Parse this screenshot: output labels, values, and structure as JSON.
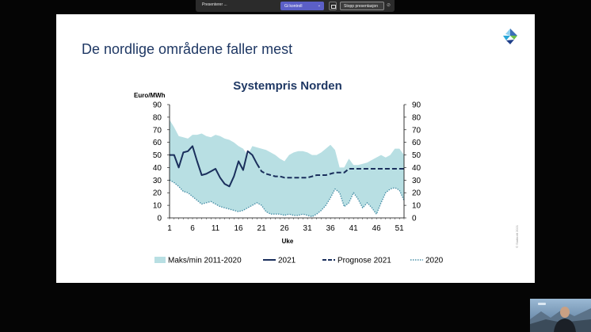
{
  "toolbar": {
    "presenting_label": "Presenterer ...",
    "take_control_label": "Gi kontroll",
    "stop_presenting_label": "Stopp presentasjon"
  },
  "slide": {
    "title": "De nordlige områdene faller mest",
    "copyright": "© Statkraft 2021"
  },
  "chart_data": {
    "type": "area",
    "title": "Systempris Norden",
    "ylabel": "Euro/MWh",
    "xlabel": "Uke",
    "xlim": [
      1,
      52
    ],
    "ylim": [
      0,
      90
    ],
    "yticks": [
      0,
      10,
      20,
      30,
      40,
      50,
      60,
      70,
      80,
      90
    ],
    "xticks": [
      1,
      6,
      11,
      16,
      21,
      26,
      31,
      36,
      41,
      46,
      51
    ],
    "legend_position": "bottom",
    "grid": false,
    "colors": {
      "band": "#b8dfe3",
      "2021": "#1a2f5c",
      "forecast": "#1a2f5c",
      "2020": "#4a90a8"
    },
    "series": [
      {
        "name": "Maks/min 2011-2020",
        "style": "band",
        "x": [
          1,
          2,
          3,
          4,
          5,
          6,
          7,
          8,
          9,
          10,
          11,
          12,
          13,
          14,
          15,
          16,
          17,
          18,
          19,
          20,
          21,
          22,
          23,
          24,
          25,
          26,
          27,
          28,
          29,
          30,
          31,
          32,
          33,
          34,
          35,
          36,
          37,
          38,
          39,
          40,
          41,
          42,
          43,
          44,
          45,
          46,
          47,
          48,
          49,
          50,
          51,
          52
        ],
        "upper": [
          78,
          72,
          65,
          64,
          63,
          66,
          66,
          67,
          65,
          64,
          66,
          65,
          63,
          62,
          60,
          57,
          55,
          50,
          57,
          56,
          55,
          54,
          52,
          50,
          47,
          45,
          50,
          52,
          53,
          53,
          52,
          50,
          50,
          52,
          55,
          58,
          54,
          40,
          40,
          47,
          42,
          42,
          43,
          44,
          46,
          48,
          50,
          48,
          50,
          55,
          55,
          50
        ],
        "lower": [
          30,
          28,
          25,
          21,
          20,
          17,
          14,
          11,
          12,
          13,
          11,
          9,
          8,
          7,
          6,
          5,
          6,
          8,
          10,
          12,
          10,
          5,
          3,
          3,
          3,
          2,
          3,
          2,
          2,
          3,
          2,
          1,
          3,
          6,
          10,
          16,
          23,
          20,
          9,
          12,
          20,
          15,
          8,
          12,
          8,
          3,
          12,
          20,
          23,
          24,
          22,
          14
        ]
      },
      {
        "name": "2021",
        "style": "solid",
        "x": [
          1,
          2,
          3,
          4,
          5,
          6,
          7,
          8,
          9,
          10,
          11,
          12,
          13,
          14,
          15,
          16,
          17,
          18,
          19,
          20
        ],
        "values": [
          50,
          50,
          40,
          52,
          53,
          57,
          45,
          34,
          35,
          37,
          39,
          32,
          27,
          25,
          33,
          45,
          38,
          53,
          50,
          43
        ]
      },
      {
        "name": "Prognose 2021",
        "style": "dashed",
        "x": [
          20,
          21,
          22,
          23,
          24,
          25,
          26,
          27,
          28,
          29,
          30,
          31,
          32,
          33,
          34,
          35,
          36,
          37,
          38,
          39,
          40,
          41,
          42,
          43,
          44,
          45,
          46,
          47,
          48,
          49,
          50,
          51,
          52
        ],
        "values": [
          43,
          37,
          35,
          34,
          33,
          33,
          32,
          32,
          32,
          32,
          32,
          32,
          33,
          34,
          34,
          34,
          35,
          36,
          36,
          36,
          39,
          39,
          39,
          39,
          39,
          39,
          39,
          39,
          39,
          39,
          39,
          39,
          39
        ]
      },
      {
        "name": "2020",
        "style": "dotted",
        "x": [
          1,
          2,
          3,
          4,
          5,
          6,
          7,
          8,
          9,
          10,
          11,
          12,
          13,
          14,
          15,
          16,
          17,
          18,
          19,
          20,
          21,
          22,
          23,
          24,
          25,
          26,
          27,
          28,
          29,
          30,
          31,
          32,
          33,
          34,
          35,
          36,
          37,
          38,
          39,
          40,
          41,
          42,
          43,
          44,
          45,
          46,
          47,
          48,
          49,
          50,
          51,
          52
        ],
        "values": [
          30,
          28,
          25,
          21,
          20,
          17,
          14,
          11,
          12,
          13,
          11,
          9,
          8,
          7,
          6,
          5,
          6,
          8,
          10,
          12,
          10,
          5,
          3,
          3,
          3,
          2,
          3,
          2,
          2,
          3,
          2,
          1,
          3,
          6,
          10,
          16,
          23,
          20,
          9,
          12,
          20,
          15,
          8,
          12,
          8,
          3,
          12,
          20,
          23,
          24,
          22,
          14
        ]
      }
    ]
  }
}
